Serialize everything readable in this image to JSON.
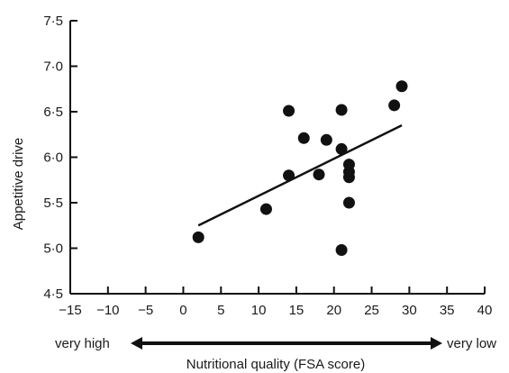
{
  "chart_data": {
    "type": "scatter",
    "xlabel": "Nutritional quality (FSA score)",
    "ylabel": "Appetitive drive",
    "xlim": [
      -15,
      40
    ],
    "ylim": [
      4.5,
      7.5
    ],
    "x_ticks": [
      "−15",
      "−10",
      "−5",
      "0",
      "5",
      "10",
      "15",
      "20",
      "25",
      "30",
      "35",
      "40"
    ],
    "y_ticks": [
      "4·5",
      "5·0",
      "5·5",
      "6·0",
      "6·5",
      "7·0",
      "7·5"
    ],
    "grid": false,
    "points": [
      {
        "x": 2,
        "y": 5.12
      },
      {
        "x": 11,
        "y": 5.43
      },
      {
        "x": 14,
        "y": 5.8
      },
      {
        "x": 14,
        "y": 6.51
      },
      {
        "x": 16,
        "y": 6.21
      },
      {
        "x": 18,
        "y": 5.81
      },
      {
        "x": 19,
        "y": 6.19
      },
      {
        "x": 21,
        "y": 4.98
      },
      {
        "x": 21,
        "y": 6.09
      },
      {
        "x": 21,
        "y": 6.52
      },
      {
        "x": 22,
        "y": 5.5
      },
      {
        "x": 22,
        "y": 5.78
      },
      {
        "x": 22,
        "y": 5.84
      },
      {
        "x": 22,
        "y": 5.92
      },
      {
        "x": 28,
        "y": 6.57
      },
      {
        "x": 29,
        "y": 6.78
      }
    ],
    "trendline": {
      "x": [
        2,
        29
      ],
      "y": [
        5.25,
        6.35
      ]
    },
    "arrow": {
      "left_label": "very high",
      "right_label": "very low"
    },
    "colors": {
      "marker": "#111111",
      "line": "#111111",
      "axis": "#111111"
    }
  }
}
